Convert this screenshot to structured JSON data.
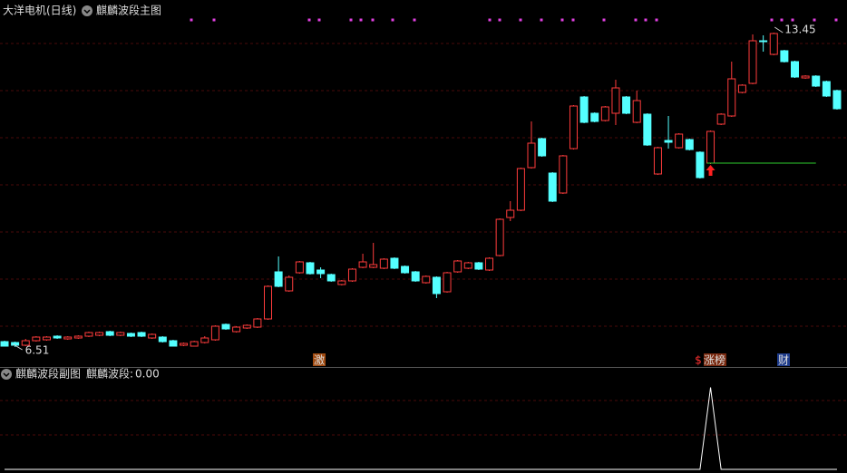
{
  "chart_data": {
    "type": "candlestick",
    "title": "大洋电机(日线)",
    "subtitle": "麒麟波段主图",
    "up_color": "#ff3c3c",
    "down_color": "#54ffff",
    "ylim": [
      6.07,
      14.17
    ],
    "open": [
      6.63,
      6.61,
      6.55,
      6.65,
      6.67,
      6.75,
      6.69,
      6.71,
      6.75,
      6.77,
      6.85,
      6.77,
      6.81,
      6.83,
      6.71,
      6.73,
      6.65,
      6.55,
      6.53,
      6.61,
      6.67,
      7.01,
      6.85,
      6.93,
      6.95,
      7.13,
      8.17,
      7.75,
      8.15,
      8.37,
      8.21,
      8.11,
      7.89,
      7.97,
      8.27,
      8.27,
      8.25,
      8.47,
      8.29,
      8.17,
      7.93,
      8.05,
      7.73,
      8.17,
      8.25,
      8.37,
      8.21,
      8.53,
      9.37,
      9.53,
      10.47,
      11.11,
      10.35,
      9.91,
      10.89,
      12.03,
      11.67,
      11.51,
      11.67,
      12.03,
      11.47,
      11.65,
      10.33,
      11.07,
      10.91,
      11.09,
      10.81,
      10.57,
      11.43,
      11.61,
      12.13,
      12.33,
      13.27,
      12.97,
      13.05,
      12.81,
      12.45,
      12.49,
      12.37,
      12.17
    ],
    "close": [
      6.53,
      6.55,
      6.65,
      6.73,
      6.73,
      6.71,
      6.73,
      6.75,
      6.83,
      6.83,
      6.77,
      6.83,
      6.75,
      6.75,
      6.79,
      6.63,
      6.53,
      6.59,
      6.63,
      6.71,
      6.97,
      6.91,
      6.95,
      6.99,
      7.13,
      7.85,
      7.85,
      8.05,
      8.39,
      8.13,
      8.13,
      7.97,
      7.97,
      8.23,
      8.39,
      8.33,
      8.45,
      8.25,
      8.15,
      7.97,
      8.07,
      7.69,
      8.15,
      8.41,
      8.37,
      8.23,
      8.47,
      9.33,
      9.53,
      10.45,
      11.01,
      10.73,
      9.73,
      10.73,
      11.83,
      11.47,
      11.49,
      11.81,
      12.23,
      11.67,
      11.95,
      10.97,
      10.91,
      11.03,
      11.21,
      10.87,
      10.25,
      11.27,
      11.65,
      12.43,
      12.29,
      13.27,
      13.25,
      13.43,
      12.81,
      12.47,
      12.49,
      12.27,
      12.05,
      11.77
    ],
    "high": [
      6.65,
      6.63,
      6.69,
      6.75,
      6.75,
      6.77,
      6.75,
      6.77,
      6.85,
      6.85,
      6.87,
      6.85,
      6.83,
      6.85,
      6.81,
      6.75,
      6.67,
      6.61,
      6.65,
      6.75,
      6.99,
      7.03,
      6.97,
      7.01,
      7.15,
      7.87,
      8.51,
      8.09,
      8.41,
      8.39,
      8.27,
      8.13,
      7.99,
      8.25,
      8.57,
      8.81,
      8.47,
      8.49,
      8.31,
      8.19,
      8.09,
      8.07,
      8.17,
      8.43,
      8.39,
      8.39,
      8.49,
      9.35,
      9.73,
      10.47,
      11.49,
      11.13,
      10.37,
      10.75,
      11.85,
      12.05,
      11.69,
      11.83,
      12.41,
      12.05,
      12.17,
      11.67,
      10.93,
      11.61,
      11.23,
      11.11,
      10.83,
      11.29,
      11.67,
      12.81,
      12.31,
      13.41,
      13.39,
      13.45,
      13.07,
      12.83,
      12.51,
      12.51,
      12.39,
      12.19
    ],
    "low": [
      6.53,
      6.51,
      6.53,
      6.63,
      6.65,
      6.69,
      6.67,
      6.69,
      6.73,
      6.75,
      6.75,
      6.75,
      6.73,
      6.73,
      6.69,
      6.61,
      6.52,
      6.53,
      6.53,
      6.59,
      6.65,
      6.89,
      6.83,
      6.91,
      6.93,
      7.11,
      7.83,
      7.73,
      8.13,
      8.11,
      8.03,
      7.95,
      7.87,
      7.95,
      8.25,
      8.25,
      8.23,
      8.23,
      8.13,
      7.95,
      7.91,
      7.59,
      7.71,
      8.15,
      8.23,
      8.21,
      8.19,
      8.51,
      9.29,
      9.51,
      10.45,
      10.71,
      9.71,
      9.89,
      10.87,
      11.45,
      11.47,
      11.49,
      11.41,
      11.65,
      11.45,
      10.95,
      10.31,
      10.89,
      10.89,
      10.85,
      10.23,
      10.55,
      11.41,
      11.59,
      12.11,
      12.31,
      13.03,
      12.95,
      12.79,
      12.45,
      12.43,
      12.25,
      12.03,
      11.75
    ],
    "high_label": {
      "value": 13.45,
      "label": "13.45"
    },
    "low_label": {
      "value": 6.51,
      "label": "6.51"
    },
    "badges": [
      "激",
      "$",
      "涨榜",
      "财"
    ],
    "indicator": {
      "title": "麒麟波段副图",
      "name": "麒麟波段:",
      "current_value": 0,
      "current_value_label": "0.00",
      "ylim": [
        0,
        1.25
      ],
      "values": [
        0,
        0,
        0,
        0,
        0,
        0,
        0,
        0,
        0,
        0,
        0,
        0,
        0,
        0,
        0,
        0,
        0,
        0,
        0,
        0,
        0,
        0,
        0,
        0,
        0,
        0,
        0,
        0,
        0,
        0,
        0,
        0,
        0,
        0,
        0,
        0,
        0,
        0,
        0,
        0,
        0,
        0,
        0,
        0,
        0,
        0,
        0,
        0,
        0,
        0,
        0,
        0,
        0,
        0,
        0,
        0,
        0,
        0,
        0,
        0,
        0,
        0,
        0,
        0,
        0,
        0,
        0,
        1,
        0,
        0,
        0,
        0,
        0,
        0,
        0,
        0,
        0,
        0,
        0,
        0
      ]
    }
  }
}
